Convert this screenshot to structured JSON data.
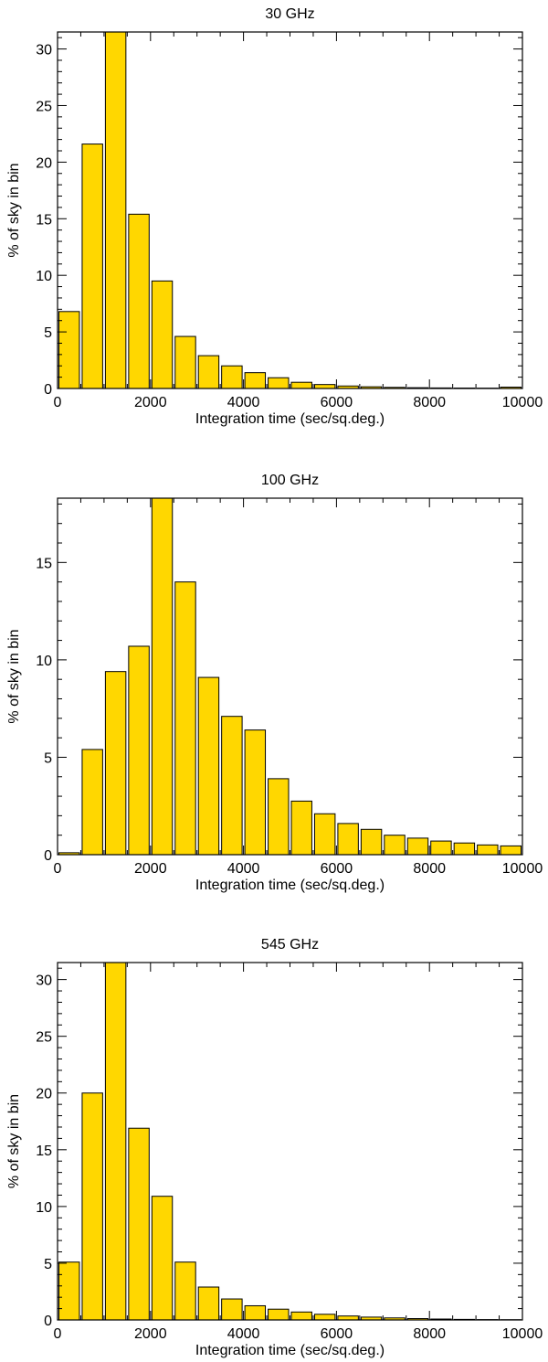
{
  "bar_color": "#FFD700",
  "axis_color": "#000000",
  "chart_data": [
    {
      "type": "bar",
      "title": "30 GHz",
      "xlabel": "Integration time (sec/sq.deg.)",
      "ylabel": "% of sky in bin",
      "bin_width": 500,
      "xlim": [
        0,
        10000
      ],
      "ylim": [
        0,
        31.5
      ],
      "xticks": [
        0,
        2000,
        4000,
        6000,
        8000,
        10000
      ],
      "xtick_labels": [
        "0",
        "2000",
        "4000",
        "6000",
        "8000",
        "10000"
      ],
      "yticks": [
        0,
        5,
        10,
        15,
        20,
        25,
        30
      ],
      "ytick_labels": [
        "0",
        "5",
        "10",
        "15",
        "20",
        "25",
        "30"
      ],
      "grid": false,
      "bin_starts": [
        0,
        500,
        1000,
        1500,
        2000,
        2500,
        3000,
        3500,
        4000,
        4500,
        5000,
        5500,
        6000,
        6500,
        7000,
        7500,
        8000,
        8500,
        9000,
        9500
      ],
      "values": [
        6.8,
        21.6,
        31.5,
        15.4,
        9.5,
        4.6,
        2.9,
        2.0,
        1.4,
        0.95,
        0.55,
        0.35,
        0.22,
        0.15,
        0.1,
        0.07,
        0.05,
        0.04,
        0.03,
        0.12
      ]
    },
    {
      "type": "bar",
      "title": "100 GHz",
      "xlabel": "Integration time (sec/sq.deg.)",
      "ylabel": "% of sky in bin",
      "bin_width": 500,
      "xlim": [
        0,
        10000
      ],
      "ylim": [
        0,
        18.3
      ],
      "xticks": [
        0,
        2000,
        4000,
        6000,
        8000,
        10000
      ],
      "xtick_labels": [
        "0",
        "2000",
        "4000",
        "6000",
        "8000",
        "10000"
      ],
      "yticks": [
        0,
        5,
        10,
        15
      ],
      "ytick_labels": [
        "0",
        "5",
        "10",
        "15"
      ],
      "grid": false,
      "bin_starts": [
        0,
        500,
        1000,
        1500,
        2000,
        2500,
        3000,
        3500,
        4000,
        4500,
        5000,
        5500,
        6000,
        6500,
        7000,
        7500,
        8000,
        8500,
        9000,
        9500
      ],
      "values": [
        0.1,
        5.4,
        9.4,
        10.7,
        18.3,
        14.0,
        9.1,
        7.1,
        6.4,
        3.9,
        2.75,
        2.1,
        1.6,
        1.3,
        1.0,
        0.85,
        0.7,
        0.6,
        0.5,
        0.45
      ]
    },
    {
      "type": "bar",
      "title": "545 GHz",
      "xlabel": "Integration time (sec/sq.deg.)",
      "ylabel": "% of sky in bin",
      "bin_width": 500,
      "xlim": [
        0,
        10000
      ],
      "ylim": [
        0,
        31.5
      ],
      "xticks": [
        0,
        2000,
        4000,
        6000,
        8000,
        10000
      ],
      "xtick_labels": [
        "0",
        "2000",
        "4000",
        "6000",
        "8000",
        "10000"
      ],
      "yticks": [
        0,
        5,
        10,
        15,
        20,
        25,
        30
      ],
      "ytick_labels": [
        "0",
        "5",
        "10",
        "15",
        "20",
        "25",
        "30"
      ],
      "grid": false,
      "bin_starts": [
        0,
        500,
        1000,
        1500,
        2000,
        2500,
        3000,
        3500,
        4000,
        4500,
        5000,
        5500,
        6000,
        6500,
        7000,
        7500,
        8000,
        8500,
        9000,
        9500
      ],
      "values": [
        5.1,
        20.0,
        31.5,
        16.9,
        10.9,
        5.1,
        2.9,
        1.85,
        1.25,
        0.95,
        0.7,
        0.5,
        0.35,
        0.25,
        0.18,
        0.12,
        0.08,
        0.05,
        0.03,
        0.02
      ]
    }
  ]
}
